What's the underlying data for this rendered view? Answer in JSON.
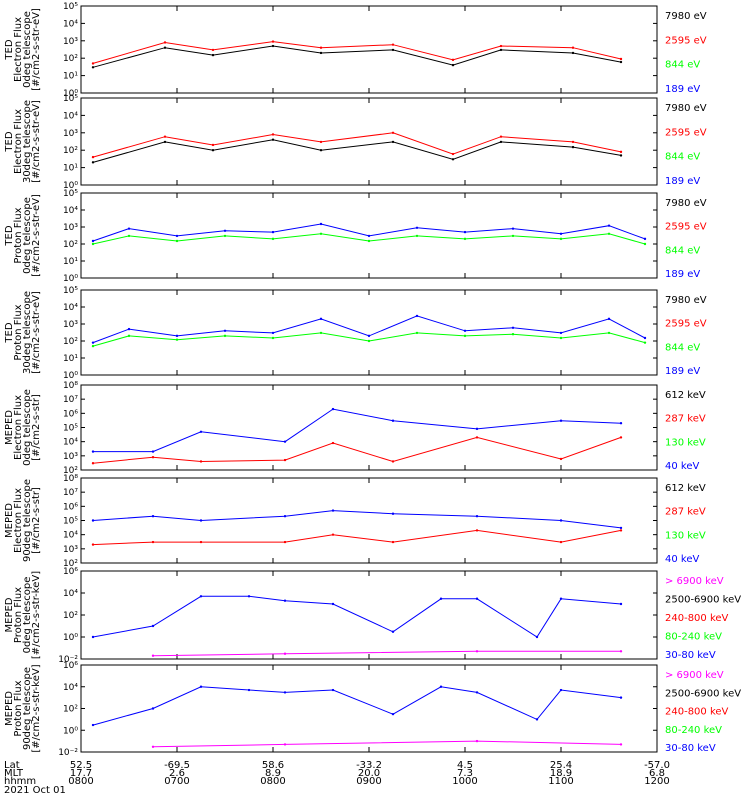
{
  "colors": {
    "black": "#000000",
    "red": "#ff0000",
    "green": "#00ff00",
    "blue": "#0000ff",
    "magenta": "#ff00ff"
  },
  "chart_data": [
    {
      "type": "line",
      "ylabel_lines": [
        "TED",
        "Electron Flux",
        "0deg telescope",
        "[#/cm2-s-str-eV]"
      ],
      "yscale": "log",
      "ylim": [
        1,
        100000
      ],
      "yticks": [
        1,
        10,
        100,
        1000,
        10000,
        100000
      ],
      "ytick_labels": [
        "10⁰",
        "10¹",
        "10²",
        "10³",
        "10⁴",
        "10⁵"
      ],
      "xlim": [
        "08:00",
        "12:00"
      ],
      "legend": [
        {
          "label": "7980 eV",
          "color": "#000000"
        },
        {
          "label": "2595 eV",
          "color": "#ff0000"
        },
        {
          "label": "844 eV",
          "color": "#00ff00"
        },
        {
          "label": "189 eV",
          "color": "#0000ff"
        }
      ],
      "series": [
        {
          "name": "7980 eV",
          "color": "#000000",
          "x": [
            "08:05",
            "08:35",
            "08:55",
            "09:20",
            "09:40",
            "10:10",
            "10:35",
            "10:55",
            "11:25",
            "11:45"
          ],
          "y": [
            30,
            400,
            150,
            500,
            200,
            300,
            40,
            300,
            200,
            60
          ]
        },
        {
          "name": "2595 eV",
          "color": "#ff0000",
          "x": [
            "08:05",
            "08:35",
            "08:55",
            "09:20",
            "09:40",
            "10:10",
            "10:35",
            "10:55",
            "11:25",
            "11:45"
          ],
          "y": [
            50,
            800,
            300,
            900,
            400,
            600,
            80,
            500,
            400,
            90
          ]
        }
      ]
    },
    {
      "type": "line",
      "ylabel_lines": [
        "TED",
        "Electron Flux",
        "30deg telescope",
        "[#/cm2-s-str-eV]"
      ],
      "yscale": "log",
      "ylim": [
        1,
        100000
      ],
      "yticks": [
        1,
        10,
        100,
        1000,
        10000,
        100000
      ],
      "ytick_labels": [
        "10⁰",
        "10¹",
        "10²",
        "10³",
        "10⁴",
        "10⁵"
      ],
      "xlim": [
        "08:00",
        "12:00"
      ],
      "legend": [
        {
          "label": "7980 eV",
          "color": "#000000"
        },
        {
          "label": "2595 eV",
          "color": "#ff0000"
        },
        {
          "label": "844 eV",
          "color": "#00ff00"
        },
        {
          "label": "189 eV",
          "color": "#0000ff"
        }
      ],
      "series": [
        {
          "name": "7980 eV",
          "color": "#000000",
          "x": [
            "08:05",
            "08:35",
            "08:55",
            "09:20",
            "09:40",
            "10:10",
            "10:35",
            "10:55",
            "11:25",
            "11:45"
          ],
          "y": [
            20,
            300,
            100,
            400,
            100,
            300,
            30,
            300,
            150,
            50
          ]
        },
        {
          "name": "2595 eV",
          "color": "#ff0000",
          "x": [
            "08:05",
            "08:35",
            "08:55",
            "09:20",
            "09:40",
            "10:10",
            "10:35",
            "10:55",
            "11:25",
            "11:45"
          ],
          "y": [
            40,
            600,
            200,
            800,
            300,
            1000,
            60,
            600,
            300,
            80
          ]
        }
      ]
    },
    {
      "type": "line",
      "ylabel_lines": [
        "TED",
        "Proton Flux",
        "0deg telescope",
        "[#/cm2-s-str-eV]"
      ],
      "yscale": "log",
      "ylim": [
        1,
        100000
      ],
      "yticks": [
        1,
        10,
        100,
        1000,
        10000,
        100000
      ],
      "ytick_labels": [
        "10⁰",
        "10¹",
        "10²",
        "10³",
        "10⁴",
        "10⁵"
      ],
      "xlim": [
        "08:00",
        "12:00"
      ],
      "legend": [
        {
          "label": "7980 eV",
          "color": "#000000"
        },
        {
          "label": "2595 eV",
          "color": "#ff0000"
        },
        {
          "label": "844 eV",
          "color": "#00ff00"
        },
        {
          "label": "189 eV",
          "color": "#0000ff"
        }
      ],
      "series": [
        {
          "name": "844 eV",
          "color": "#00ff00",
          "x": [
            "08:05",
            "08:20",
            "08:40",
            "09:00",
            "09:20",
            "09:40",
            "10:00",
            "10:20",
            "10:40",
            "11:00",
            "11:20",
            "11:40",
            "11:55"
          ],
          "y": [
            100,
            300,
            150,
            300,
            200,
            400,
            150,
            300,
            200,
            300,
            200,
            400,
            100
          ]
        },
        {
          "name": "189 eV",
          "color": "#0000ff",
          "x": [
            "08:05",
            "08:20",
            "08:40",
            "09:00",
            "09:20",
            "09:40",
            "10:00",
            "10:20",
            "10:40",
            "11:00",
            "11:20",
            "11:40",
            "11:55"
          ],
          "y": [
            150,
            800,
            300,
            600,
            500,
            1500,
            300,
            900,
            500,
            800,
            400,
            1200,
            200
          ]
        }
      ]
    },
    {
      "type": "line",
      "ylabel_lines": [
        "TED",
        "Proton Flux",
        "30deg telescope",
        "[#/cm2-s-str-eV]"
      ],
      "yscale": "log",
      "ylim": [
        1,
        100000
      ],
      "yticks": [
        1,
        10,
        100,
        1000,
        10000,
        100000
      ],
      "ytick_labels": [
        "10⁰",
        "10¹",
        "10²",
        "10³",
        "10⁴",
        "10⁵"
      ],
      "xlim": [
        "08:00",
        "12:00"
      ],
      "legend": [
        {
          "label": "7980 eV",
          "color": "#000000"
        },
        {
          "label": "2595 eV",
          "color": "#ff0000"
        },
        {
          "label": "844 eV",
          "color": "#00ff00"
        },
        {
          "label": "189 eV",
          "color": "#0000ff"
        }
      ],
      "series": [
        {
          "name": "844 eV",
          "color": "#00ff00",
          "x": [
            "08:05",
            "08:20",
            "08:40",
            "09:00",
            "09:20",
            "09:40",
            "10:00",
            "10:20",
            "10:40",
            "11:00",
            "11:20",
            "11:40",
            "11:55"
          ],
          "y": [
            50,
            200,
            120,
            200,
            150,
            300,
            100,
            300,
            200,
            250,
            150,
            300,
            80
          ]
        },
        {
          "name": "189 eV",
          "color": "#0000ff",
          "x": [
            "08:05",
            "08:20",
            "08:40",
            "09:00",
            "09:20",
            "09:40",
            "10:00",
            "10:20",
            "10:40",
            "11:00",
            "11:20",
            "11:40",
            "11:55"
          ],
          "y": [
            80,
            500,
            200,
            400,
            300,
            2000,
            200,
            3000,
            400,
            600,
            300,
            2000,
            150
          ]
        }
      ]
    },
    {
      "type": "line",
      "ylabel_lines": [
        "MEPED",
        "Electron Flux",
        "0deg telescope",
        "[#/cm2-s-str]"
      ],
      "yscale": "log",
      "ylim": [
        100,
        100000000
      ],
      "yticks": [
        100,
        1000,
        10000,
        100000,
        1000000,
        10000000,
        100000000
      ],
      "ytick_labels": [
        "10²",
        "10³",
        "10⁴",
        "10⁵",
        "10⁶",
        "10⁷",
        "10⁸"
      ],
      "xlim": [
        "08:00",
        "12:00"
      ],
      "legend": [
        {
          "label": "612 keV",
          "color": "#000000"
        },
        {
          "label": "287 keV",
          "color": "#ff0000"
        },
        {
          "label": "130 keV",
          "color": "#00ff00"
        },
        {
          "label": "40 keV",
          "color": "#0000ff"
        }
      ],
      "series": [
        {
          "name": "40 keV",
          "color": "#0000ff",
          "x": [
            "08:05",
            "08:30",
            "08:50",
            "09:25",
            "09:45",
            "10:10",
            "10:45",
            "11:20",
            "11:45"
          ],
          "y": [
            2000,
            2000,
            50000,
            10000,
            2000000,
            300000,
            80000,
            300000,
            200000
          ]
        },
        {
          "name": "287 keV",
          "color": "#ff0000",
          "x": [
            "08:05",
            "08:30",
            "08:50",
            "09:25",
            "09:45",
            "10:10",
            "10:45",
            "11:20",
            "11:45"
          ],
          "y": [
            300,
            800,
            400,
            500,
            8000,
            400,
            20000,
            600,
            20000
          ]
        }
      ]
    },
    {
      "type": "line",
      "ylabel_lines": [
        "MEPED",
        "Electron Flux",
        "90deg telescope",
        "[#/cm2-s-str]"
      ],
      "yscale": "log",
      "ylim": [
        100,
        100000000
      ],
      "yticks": [
        100,
        1000,
        10000,
        100000,
        1000000,
        10000000,
        100000000
      ],
      "ytick_labels": [
        "10²",
        "10³",
        "10⁴",
        "10⁵",
        "10⁶",
        "10⁷",
        "10⁸"
      ],
      "xlim": [
        "08:00",
        "12:00"
      ],
      "legend": [
        {
          "label": "612 keV",
          "color": "#000000"
        },
        {
          "label": "287 keV",
          "color": "#ff0000"
        },
        {
          "label": "130 keV",
          "color": "#00ff00"
        },
        {
          "label": "40 keV",
          "color": "#0000ff"
        }
      ],
      "series": [
        {
          "name": "40 keV",
          "color": "#0000ff",
          "x": [
            "08:05",
            "08:30",
            "08:50",
            "09:25",
            "09:45",
            "10:10",
            "10:45",
            "11:20",
            "11:45"
          ],
          "y": [
            100000,
            200000,
            100000,
            200000,
            500000,
            300000,
            200000,
            100000,
            30000
          ]
        },
        {
          "name": "287 keV",
          "color": "#ff0000",
          "x": [
            "08:05",
            "08:30",
            "08:50",
            "09:25",
            "09:45",
            "10:10",
            "10:45",
            "11:20",
            "11:45"
          ],
          "y": [
            2000,
            3000,
            3000,
            3000,
            10000,
            3000,
            20000,
            3000,
            20000
          ]
        }
      ]
    },
    {
      "type": "line",
      "ylabel_lines": [
        "MEPED",
        "Proton Flux",
        "0deg telescope",
        "[#/cm2-s-str-keV]"
      ],
      "yscale": "log",
      "ylim": [
        0.01,
        1000000
      ],
      "yticks": [
        0.01,
        1,
        100,
        10000,
        1000000
      ],
      "ytick_labels": [
        "10⁻²",
        "10⁰",
        "10²",
        "10⁴",
        "10⁶"
      ],
      "xlim": [
        "08:00",
        "12:00"
      ],
      "legend": [
        {
          "label": "> 6900 keV",
          "color": "#ff00ff"
        },
        {
          "label": "2500-6900 keV",
          "color": "#000000"
        },
        {
          "label": "240-800 keV",
          "color": "#ff0000"
        },
        {
          "label": "80-240 keV",
          "color": "#00ff00"
        },
        {
          "label": "30-80 keV",
          "color": "#0000ff"
        }
      ],
      "series": [
        {
          "name": "30-80 keV",
          "color": "#0000ff",
          "x": [
            "08:05",
            "08:30",
            "08:50",
            "09:10",
            "09:25",
            "09:45",
            "10:10",
            "10:30",
            "10:45",
            "11:10",
            "11:20",
            "11:45"
          ],
          "y": [
            1,
            10,
            5000,
            5000,
            2000,
            1000,
            3,
            3000,
            3000,
            1,
            3000,
            1000
          ]
        },
        {
          "name": "> 6900 keV",
          "color": "#ff00ff",
          "x": [
            "08:30",
            "09:25",
            "10:45",
            "11:45"
          ],
          "y": [
            0.02,
            0.03,
            0.05,
            0.05
          ]
        }
      ]
    },
    {
      "type": "line",
      "ylabel_lines": [
        "MEPED",
        "Proton Flux",
        "90deg telescope",
        "[#/cm2-s-str-keV]"
      ],
      "yscale": "log",
      "ylim": [
        0.01,
        1000000
      ],
      "yticks": [
        0.01,
        1,
        100,
        10000,
        1000000
      ],
      "ytick_labels": [
        "10⁻²",
        "10⁰",
        "10²",
        "10⁴",
        "10⁶"
      ],
      "xlim": [
        "08:00",
        "12:00"
      ],
      "legend": [
        {
          "label": "> 6900 keV",
          "color": "#ff00ff"
        },
        {
          "label": "2500-6900 keV",
          "color": "#000000"
        },
        {
          "label": "240-800 keV",
          "color": "#ff0000"
        },
        {
          "label": "80-240 keV",
          "color": "#00ff00"
        },
        {
          "label": "30-80 keV",
          "color": "#0000ff"
        }
      ],
      "series": [
        {
          "name": "30-80 keV",
          "color": "#0000ff",
          "x": [
            "08:05",
            "08:30",
            "08:50",
            "09:10",
            "09:25",
            "09:45",
            "10:10",
            "10:30",
            "10:45",
            "11:10",
            "11:20",
            "11:45"
          ],
          "y": [
            3,
            100,
            10000,
            5000,
            3000,
            5000,
            30,
            10000,
            3000,
            10,
            5000,
            1000
          ]
        },
        {
          "name": "> 6900 keV",
          "color": "#ff00ff",
          "x": [
            "08:30",
            "09:25",
            "10:45",
            "11:45"
          ],
          "y": [
            0.03,
            0.05,
            0.1,
            0.05
          ]
        }
      ]
    }
  ],
  "x_axis": {
    "row_labels": [
      "Lat",
      "MLT",
      "hhmm",
      "2021 Oct 01"
    ],
    "ticks": [
      {
        "lat": "52.5",
        "mlt": "17.7",
        "hhmm": "0800"
      },
      {
        "lat": "-69.5",
        "mlt": "2.6",
        "hhmm": "0700"
      },
      {
        "lat": "58.6",
        "mlt": "8.9",
        "hhmm": "0800"
      },
      {
        "lat": "-33.2",
        "mlt": "20.0",
        "hhmm": "0900"
      },
      {
        "lat": "4.5",
        "mlt": "7.3",
        "hhmm": "1000"
      },
      {
        "lat": "25.4",
        "mlt": "18.9",
        "hhmm": "1100"
      },
      {
        "lat": "-57.0",
        "mlt": "6.8",
        "hhmm": "1200"
      }
    ]
  }
}
